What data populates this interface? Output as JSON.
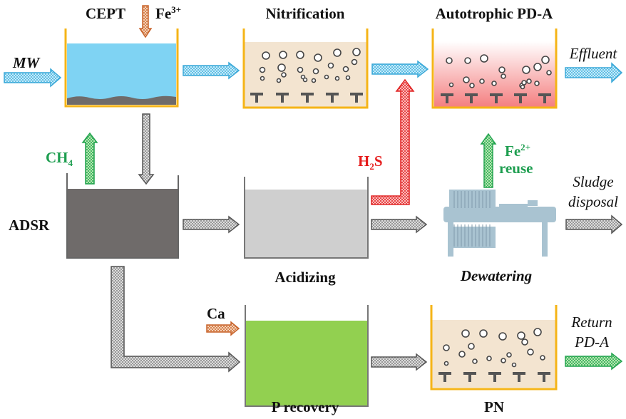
{
  "labels": {
    "cept": "CEPT",
    "fe3": "Fe",
    "fe3_sup": "3+",
    "mw": "MW",
    "nitrification": "Nitrification",
    "pda": "Autotrophic PD-A",
    "effluent": "Effluent",
    "ch4": "CH",
    "ch4_sub": "4",
    "adsr": "ADSR",
    "acidizing": "Acidizing",
    "h2s_h": "H",
    "h2s_sub": "2",
    "h2s_s": "S",
    "fe2": "Fe",
    "fe2_sup": "2+",
    "reuse": "reuse",
    "sludge": "Sludge",
    "disposal": "disposal",
    "dewatering": "Dewatering",
    "ca": "Ca",
    "p_recovery": "P recovery",
    "pn": "PN",
    "return": "Return",
    "return_pda": "PD-A"
  },
  "colors": {
    "tank_wall": "#f5b417",
    "water": "#7fd3f3",
    "sludge": "#6f6b6a",
    "beige": "#f3e4d0",
    "pink": "#f47f80",
    "acid": "#cfcfcf",
    "green_fill": "#92d050",
    "blue_arrow": "#3aa8d8",
    "gray_arrow": "#555555",
    "green_arrow": "#22a34f",
    "red_arrow": "#e02424",
    "orange_arrow": "#c8632b",
    "press": "#a9c3d1"
  }
}
